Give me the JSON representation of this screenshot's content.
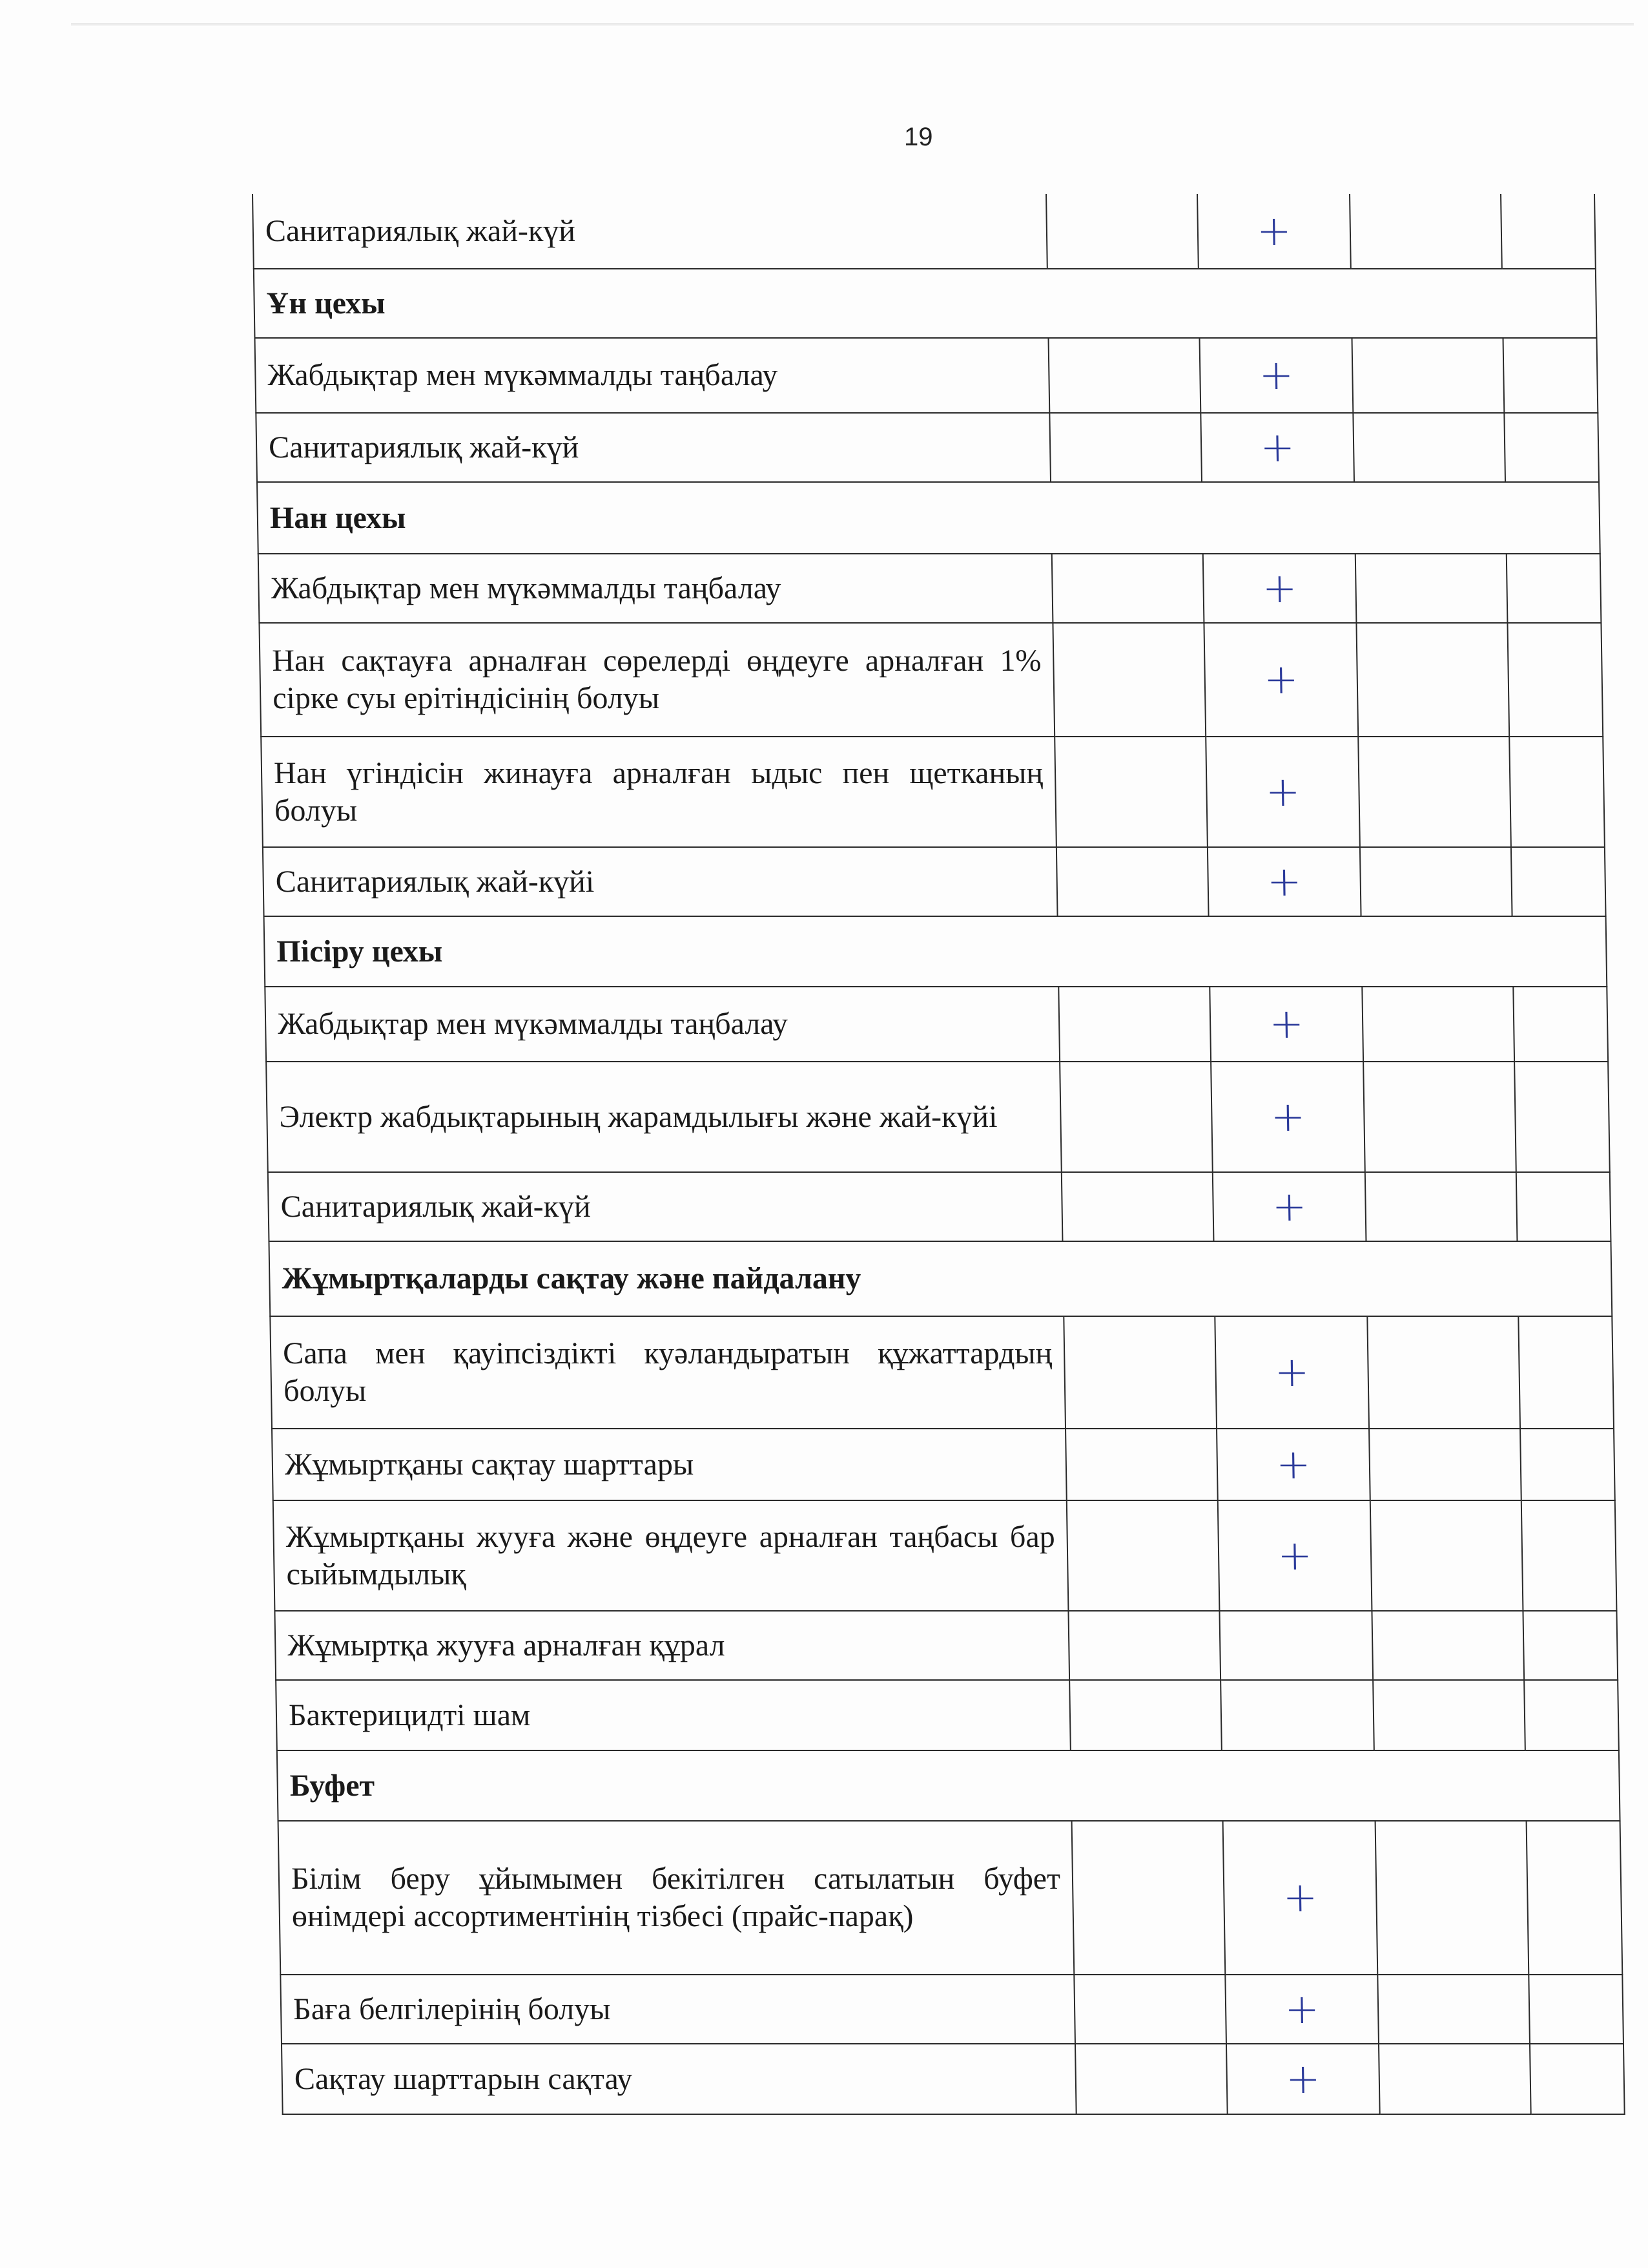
{
  "page_number": "19",
  "mark_color": "#2b3a9a",
  "rows": [
    {
      "type": "item",
      "text": "Санитариялық жай-күй",
      "marks": [
        "",
        "+",
        "",
        ""
      ]
    },
    {
      "type": "section",
      "text": "Ұн цехы"
    },
    {
      "type": "item",
      "text": "Жабдықтар мен мүкәммалды таңбалау",
      "marks": [
        "",
        "+",
        "",
        ""
      ]
    },
    {
      "type": "item",
      "text": "Санитариялық жай-күй",
      "marks": [
        "",
        "+",
        "",
        ""
      ]
    },
    {
      "type": "section",
      "text": "Нан цехы"
    },
    {
      "type": "item",
      "text": "Жабдықтар мен мүкәммалды таңбалау",
      "marks": [
        "",
        "+",
        "",
        ""
      ]
    },
    {
      "type": "item",
      "text": "Нан сақтауға арналған сөрелерді өңдеуге арналған 1% сірке суы ерітіндісінің болуы",
      "marks": [
        "",
        "+",
        "",
        ""
      ]
    },
    {
      "type": "item",
      "text": "Нан үгіндісін жинауға арналған ыдыс пен щетканың болуы",
      "marks": [
        "",
        "+",
        "",
        ""
      ]
    },
    {
      "type": "item",
      "text": "Санитариялық жай-күйі",
      "marks": [
        "",
        "+",
        "",
        ""
      ]
    },
    {
      "type": "section",
      "text": "Пісіру цехы"
    },
    {
      "type": "item",
      "text": "Жабдықтар мен мүкәммалды таңбалау",
      "marks": [
        "",
        "+",
        "",
        ""
      ]
    },
    {
      "type": "item",
      "text": "Электр жабдықтарының жарамдылығы және жай-күйі",
      "marks": [
        "",
        "+",
        "",
        ""
      ]
    },
    {
      "type": "item",
      "text": "Санитариялық жай-күй",
      "marks": [
        "",
        "+",
        "",
        ""
      ]
    },
    {
      "type": "section",
      "text": "Жұмыртқаларды сақтау және пайдалану"
    },
    {
      "type": "item",
      "text": "Сапа мен қауіпсіздікті куәландыратын құжаттардың болуы",
      "marks": [
        "",
        "+",
        "",
        ""
      ]
    },
    {
      "type": "item",
      "text": "Жұмыртқаны сақтау шарттары",
      "marks": [
        "",
        "+",
        "",
        ""
      ]
    },
    {
      "type": "item",
      "text": "Жұмыртқаны жууға және өңдеуге арналған таңбасы бар сыйымдылық",
      "marks": [
        "",
        "+",
        "",
        ""
      ]
    },
    {
      "type": "item",
      "text": "Жұмыртқа жууға арналған құрал",
      "marks": [
        "",
        "",
        "",
        ""
      ]
    },
    {
      "type": "item",
      "text": "Бактерицидті шам",
      "marks": [
        "",
        "",
        "",
        ""
      ]
    },
    {
      "type": "section",
      "text": "Буфет"
    },
    {
      "type": "item",
      "text": "Білім беру ұйымымен бекітілген сатылатын буфет өнімдері ассортиментінің тізбесі (прайс-парақ)",
      "marks": [
        "",
        "+",
        "",
        ""
      ]
    },
    {
      "type": "item",
      "text": "Баға белгілерінің болуы",
      "marks": [
        "",
        "+",
        "",
        ""
      ]
    },
    {
      "type": "item",
      "text": "Сақтау шарттарын сақтау",
      "marks": [
        "",
        "+",
        "",
        ""
      ]
    }
  ]
}
